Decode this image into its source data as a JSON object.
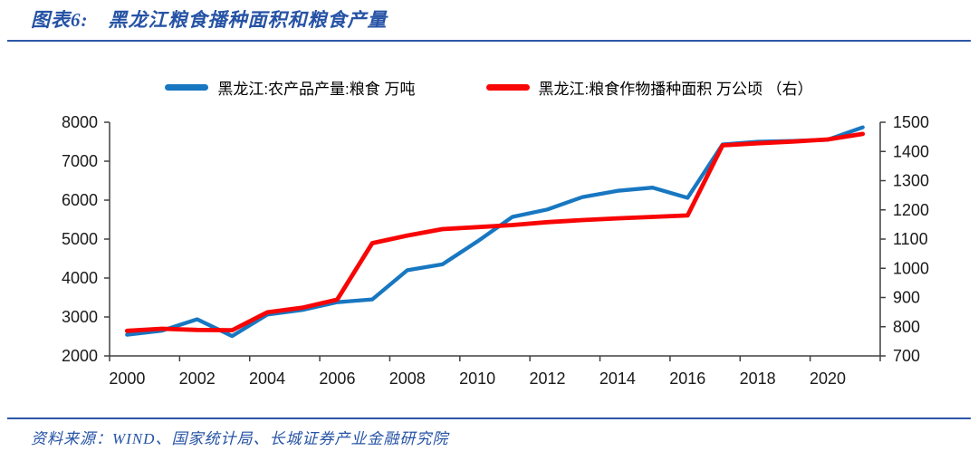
{
  "header": {
    "title_label": "图表6:",
    "title": "黑龙江粮食播种面积和粮食产量"
  },
  "footer": {
    "source_label": "资料来源：",
    "source": "WIND、国家统计局、长城证券产业金融研究院"
  },
  "colors": {
    "title_blue": "#2653A5",
    "rule_blue": "#2C57A7",
    "production_blue": "#1877C1",
    "area_red": "#F80505",
    "axis_line": "#404040",
    "tick_label": "#1a1a1a"
  },
  "chart_data": {
    "type": "line",
    "title": "黑龙江粮食播种面积和粮食产量",
    "x": [
      2000,
      2001,
      2002,
      2003,
      2004,
      2005,
      2006,
      2007,
      2008,
      2009,
      2010,
      2011,
      2012,
      2013,
      2014,
      2015,
      2016,
      2017,
      2018,
      2019,
      2020,
      2021
    ],
    "x_tick_labels": [
      "2000",
      "2002",
      "2004",
      "2006",
      "2008",
      "2010",
      "2012",
      "2014",
      "2016",
      "2018",
      "2020"
    ],
    "series": [
      {
        "name": "黑龙江:农产品产量:粮食 万吨",
        "axis": "left",
        "color": "#1877C1",
        "values": [
          2545,
          2650,
          2940,
          2510,
          3060,
          3180,
          3380,
          3450,
          4200,
          4350,
          4940,
          5570,
          5760,
          6080,
          6240,
          6320,
          6060,
          7430,
          7500,
          7520,
          7550,
          7870
        ]
      },
      {
        "name": "黑龙江:粮食作物播种面积 万公顷 （右）",
        "axis": "right",
        "color": "#F80505",
        "values": [
          786,
          793,
          789,
          788,
          849,
          865,
          893,
          1086,
          1112,
          1134,
          1141,
          1148,
          1158,
          1165,
          1171,
          1176,
          1181,
          1421,
          1428,
          1434,
          1441,
          1460
        ]
      }
    ],
    "left_axis": {
      "min": 2000,
      "max": 8000,
      "step": 1000
    },
    "right_axis": {
      "min": 700,
      "max": 1500,
      "step": 100
    },
    "grid": false,
    "legend_position": "top"
  }
}
